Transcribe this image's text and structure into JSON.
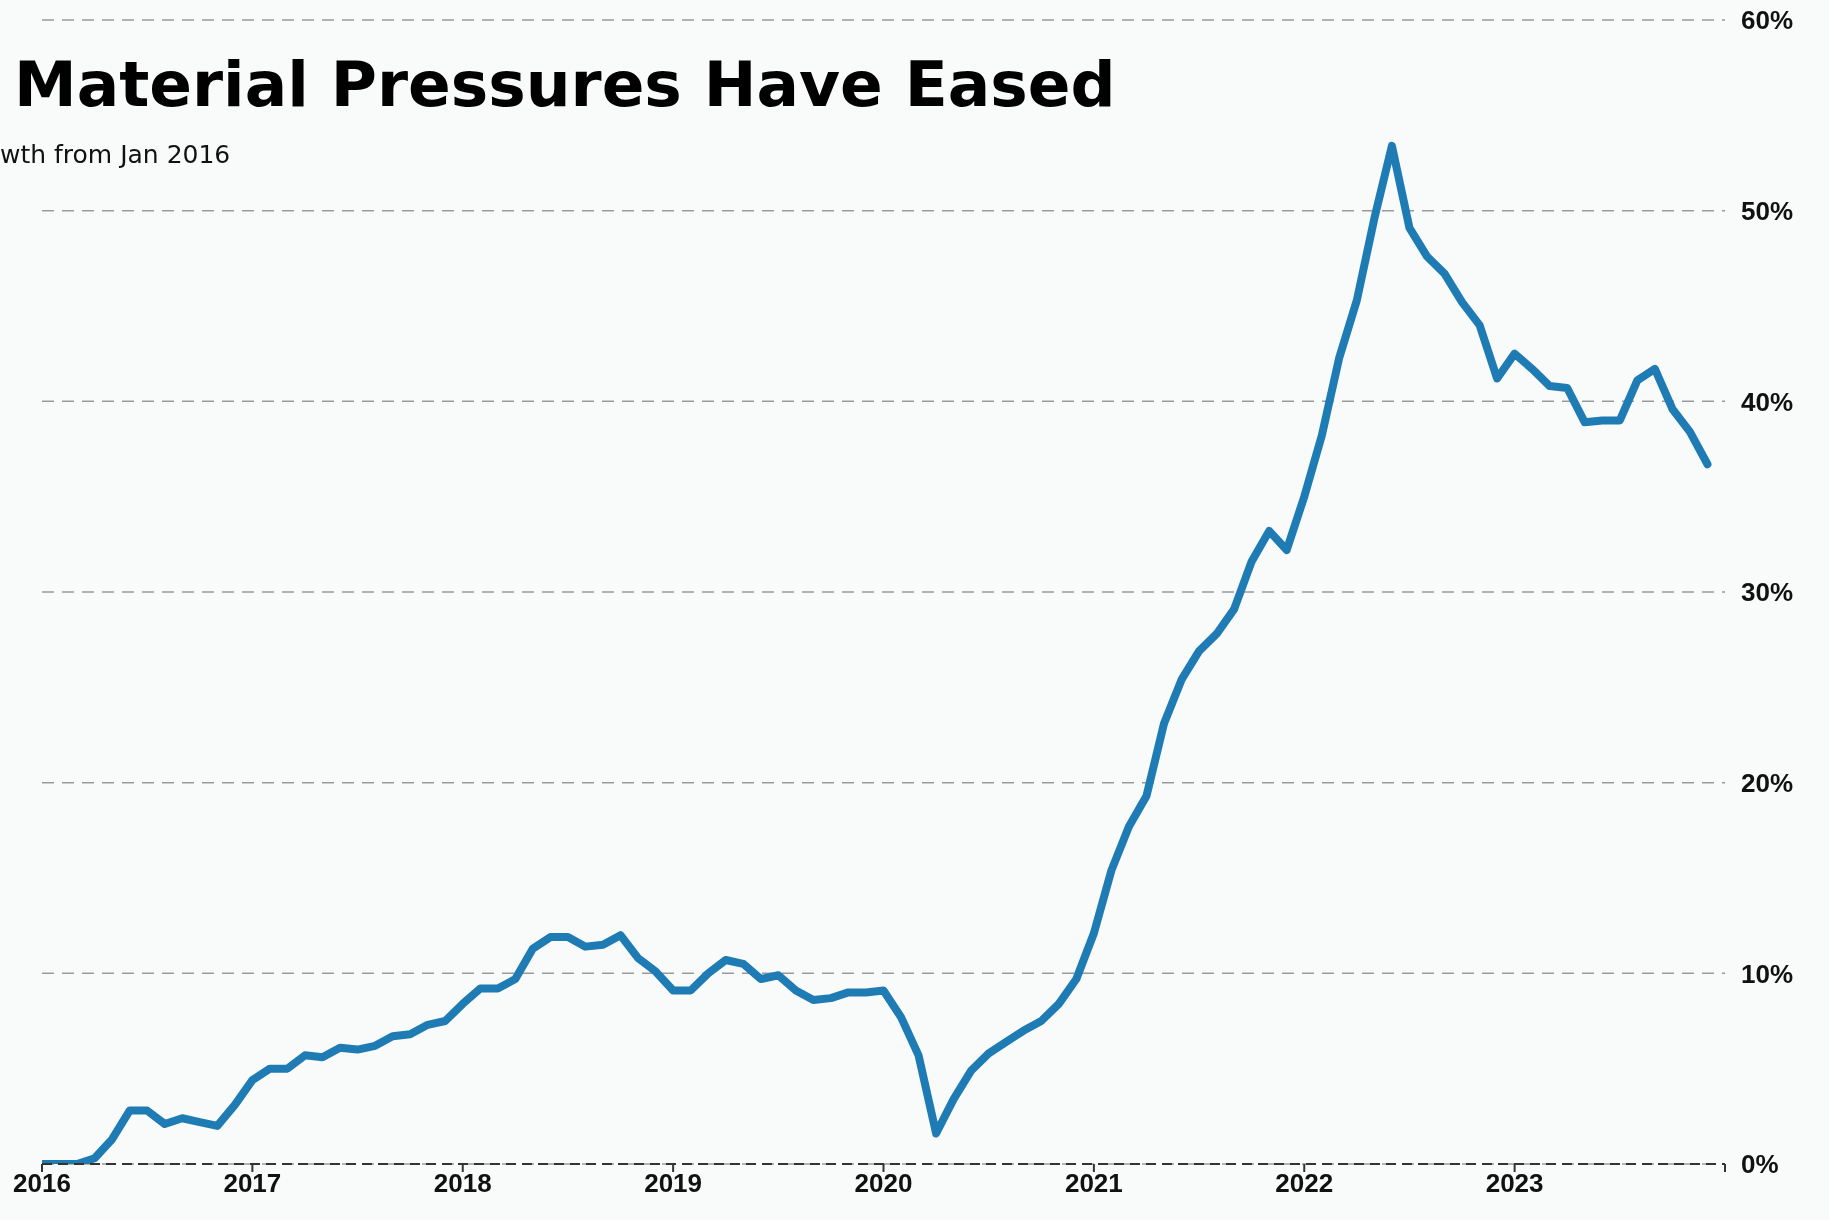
{
  "chart_data": {
    "type": "line",
    "title": "Material Pressures Have Eased",
    "subtitle": "wth from Jan 2016",
    "x": [
      "2016-01",
      "2016-02",
      "2016-03",
      "2016-04",
      "2016-05",
      "2016-06",
      "2016-07",
      "2016-08",
      "2016-09",
      "2016-10",
      "2016-11",
      "2016-12",
      "2017-01",
      "2017-02",
      "2017-03",
      "2017-04",
      "2017-05",
      "2017-06",
      "2017-07",
      "2017-08",
      "2017-09",
      "2017-10",
      "2017-11",
      "2017-12",
      "2018-01",
      "2018-02",
      "2018-03",
      "2018-04",
      "2018-05",
      "2018-06",
      "2018-07",
      "2018-08",
      "2018-09",
      "2018-10",
      "2018-11",
      "2018-12",
      "2019-01",
      "2019-02",
      "2019-03",
      "2019-04",
      "2019-05",
      "2019-06",
      "2019-07",
      "2019-08",
      "2019-09",
      "2019-10",
      "2019-11",
      "2019-12",
      "2020-01",
      "2020-02",
      "2020-03",
      "2020-04",
      "2020-05",
      "2020-06",
      "2020-07",
      "2020-08",
      "2020-09",
      "2020-10",
      "2020-11",
      "2020-12",
      "2021-01",
      "2021-02",
      "2021-03",
      "2021-04",
      "2021-05",
      "2021-06",
      "2021-07",
      "2021-08",
      "2021-09",
      "2021-10",
      "2021-11",
      "2021-12",
      "2022-01",
      "2022-02",
      "2022-03",
      "2022-04",
      "2022-05",
      "2022-06",
      "2022-07",
      "2022-08",
      "2022-09",
      "2022-10",
      "2022-11",
      "2022-12",
      "2023-01",
      "2023-02",
      "2023-03",
      "2023-04",
      "2023-05",
      "2023-06",
      "2023-07",
      "2023-08",
      "2023-09",
      "2023-10",
      "2023-11",
      "2023-12"
    ],
    "series": [
      {
        "color": "#1f7bb4",
        "values": [
          0,
          0,
          0,
          0.3,
          1.3,
          2.8,
          2.8,
          2.1,
          2.4,
          2.2,
          2.0,
          3.1,
          4.4,
          5.0,
          5.0,
          5.7,
          5.6,
          6.1,
          6.0,
          6.2,
          6.7,
          6.8,
          7.3,
          7.5,
          8.4,
          9.2,
          9.2,
          9.7,
          11.3,
          11.9,
          11.9,
          11.4,
          11.5,
          12.0,
          10.8,
          10.1,
          9.1,
          9.1,
          10.0,
          10.7,
          10.5,
          9.7,
          9.9,
          9.1,
          8.6,
          8.7,
          9.0,
          9.0,
          9.1,
          7.7,
          5.7,
          1.6,
          3.4,
          4.9,
          5.8,
          6.4,
          7.0,
          7.5,
          8.4,
          9.7,
          12.1,
          15.4,
          17.7,
          19.3,
          23.1,
          25.4,
          26.9,
          27.8,
          29.1,
          31.6,
          33.2,
          32.2,
          35.0,
          38.2,
          42.3,
          45.3,
          49.6,
          53.4,
          49.1,
          47.6,
          46.7,
          45.2,
          44.0,
          41.2,
          42.5,
          41.7,
          40.8,
          40.7,
          38.9,
          39.0,
          39.0,
          41.1,
          41.7,
          39.6,
          38.4,
          36.7
        ]
      }
    ],
    "xlim": [
      "2016-01",
      "2024-01"
    ],
    "xticks": [
      {
        "value": "2016-01",
        "label": "2016"
      },
      {
        "value": "2017-01",
        "label": "2017"
      },
      {
        "value": "2018-01",
        "label": "2018"
      },
      {
        "value": "2019-01",
        "label": "2019"
      },
      {
        "value": "2020-01",
        "label": "2020"
      },
      {
        "value": "2021-01",
        "label": "2021"
      },
      {
        "value": "2022-01",
        "label": "2022"
      },
      {
        "value": "2023-01",
        "label": "2023"
      },
      {
        "value": "2024-01",
        "label": null
      }
    ],
    "ylim": [
      0,
      60
    ],
    "yticks": [
      {
        "value": 0,
        "label": "0%"
      },
      {
        "value": 10,
        "label": "10%"
      },
      {
        "value": 20,
        "label": "20%"
      },
      {
        "value": 30,
        "label": "30%"
      },
      {
        "value": 40,
        "label": "40%"
      },
      {
        "value": 50,
        "label": "50%"
      },
      {
        "value": 60,
        "label": "60%"
      }
    ],
    "grid": "y",
    "legend": false,
    "marker": "none",
    "line_style": "solid"
  }
}
